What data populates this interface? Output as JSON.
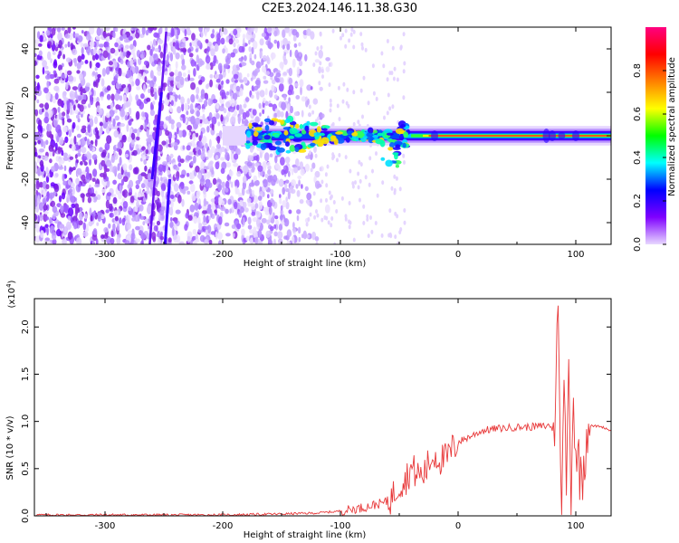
{
  "title": "C2E3.2024.146.11.38.G30",
  "chart_data": [
    {
      "type": "heatmap",
      "xlabel": "Height of straight line (km)",
      "ylabel": "Frequency (Hz)",
      "xlim": [
        -360,
        130
      ],
      "ylim": [
        -50,
        50
      ],
      "xticks": [
        -300,
        -200,
        -100,
        0,
        100
      ],
      "yticks": [
        -40,
        -20,
        0,
        20,
        40
      ],
      "colorbar": {
        "label": "Normalized spectral amplitude",
        "range": [
          0.0,
          1.0
        ],
        "ticks": [
          0.0,
          0.2,
          0.4,
          0.6,
          0.8
        ],
        "colors": [
          "#e8d8ff",
          "#7f00ff",
          "#0000ff",
          "#00ffff",
          "#00ff00",
          "#ffff00",
          "#ff8000",
          "#ff0000",
          "#ff0080"
        ]
      },
      "features": {
        "noise_region_x": [
          -360,
          -130
        ],
        "ridge_frequency": 0,
        "streak_frequency_range": [
          -40,
          20
        ]
      },
      "grid": false
    },
    {
      "type": "line",
      "xlabel": "Height of straight line (km)",
      "ylabel": "SNR (10 * v/v)",
      "y_multiplier_label": "(x10",
      "y_multiplier_exp": "4",
      "y_multiplier_close": ")",
      "xlim": [
        -360,
        130
      ],
      "ylim": [
        0,
        2.3
      ],
      "xticks": [
        -300,
        -200,
        -100,
        0,
        100
      ],
      "yticks": [
        "0.0",
        "0.5",
        "1.0",
        "1.5",
        "2.0"
      ],
      "color": "#e8393a",
      "series": [
        {
          "x": [
            -360,
            -300,
            -200,
            -150,
            -120,
            -100,
            -90,
            -80,
            -70,
            -60,
            -55,
            -50,
            -45,
            -40,
            -35,
            -30,
            -25,
            -20,
            -15,
            -10,
            -5,
            0,
            10,
            20,
            30,
            40,
            50,
            60,
            70,
            75,
            80,
            82,
            84,
            86,
            88,
            90,
            92,
            94,
            96,
            98,
            100,
            105,
            110,
            115,
            120,
            125,
            130
          ],
          "y": [
            0.01,
            0.01,
            0.01,
            0.02,
            0.03,
            0.05,
            0.07,
            0.09,
            0.12,
            0.15,
            0.22,
            0.35,
            0.38,
            0.5,
            0.45,
            0.42,
            0.55,
            0.65,
            0.6,
            0.6,
            0.7,
            0.78,
            0.84,
            0.9,
            0.92,
            0.93,
            0.94,
            0.94,
            0.95,
            0.95,
            0.96,
            0.7,
            2.3,
            1.6,
            0.08,
            1.3,
            0.4,
            1.5,
            0.3,
            1.3,
            0.7,
            0.4,
            0.96,
            0.95,
            0.95,
            0.93,
            0.9
          ]
        }
      ],
      "grid": false
    }
  ]
}
